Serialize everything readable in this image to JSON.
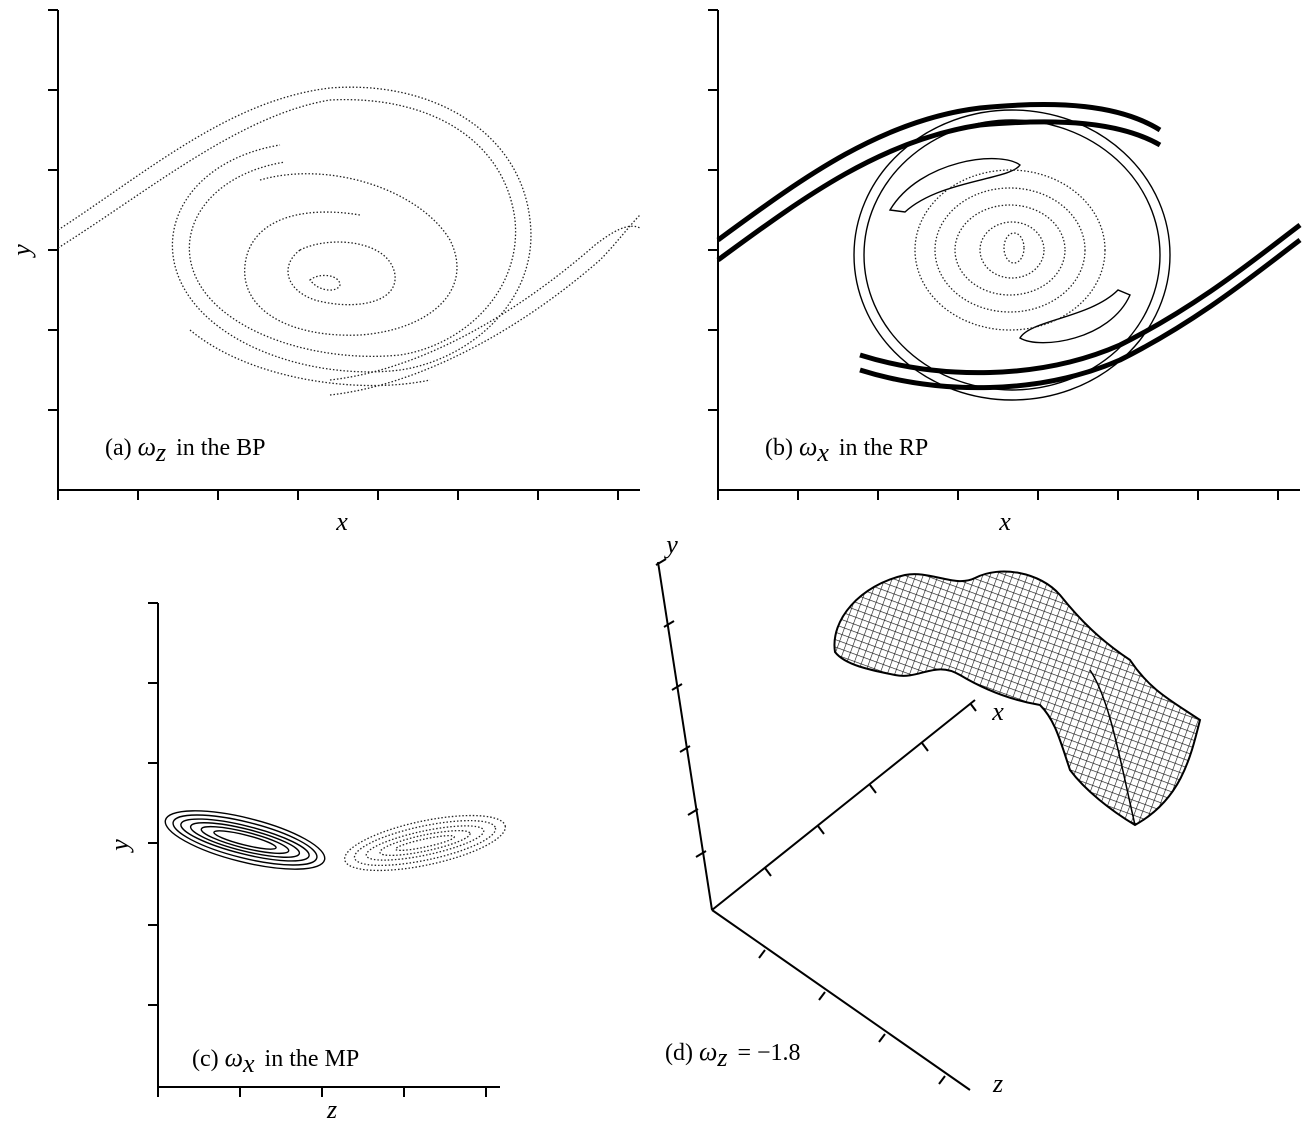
{
  "panels": [
    {
      "tag": "(a)",
      "symbol": "ω",
      "subscript": "z",
      "rest": "in the BP",
      "x_label": "x",
      "y_label": "y"
    },
    {
      "tag": "(b)",
      "symbol": "ω",
      "subscript": "x",
      "rest": "in the RP",
      "x_label": "x",
      "y_label": "y"
    },
    {
      "tag": "(c)",
      "symbol": "ω",
      "subscript": "x",
      "rest": "in the MP",
      "x_label": "z",
      "y_label": "y"
    },
    {
      "tag": "(d)",
      "symbol": "ω",
      "subscript": "z",
      "rest": "= −1.8",
      "x_label": "x",
      "y_label": "y",
      "z_label": "z"
    }
  ]
}
